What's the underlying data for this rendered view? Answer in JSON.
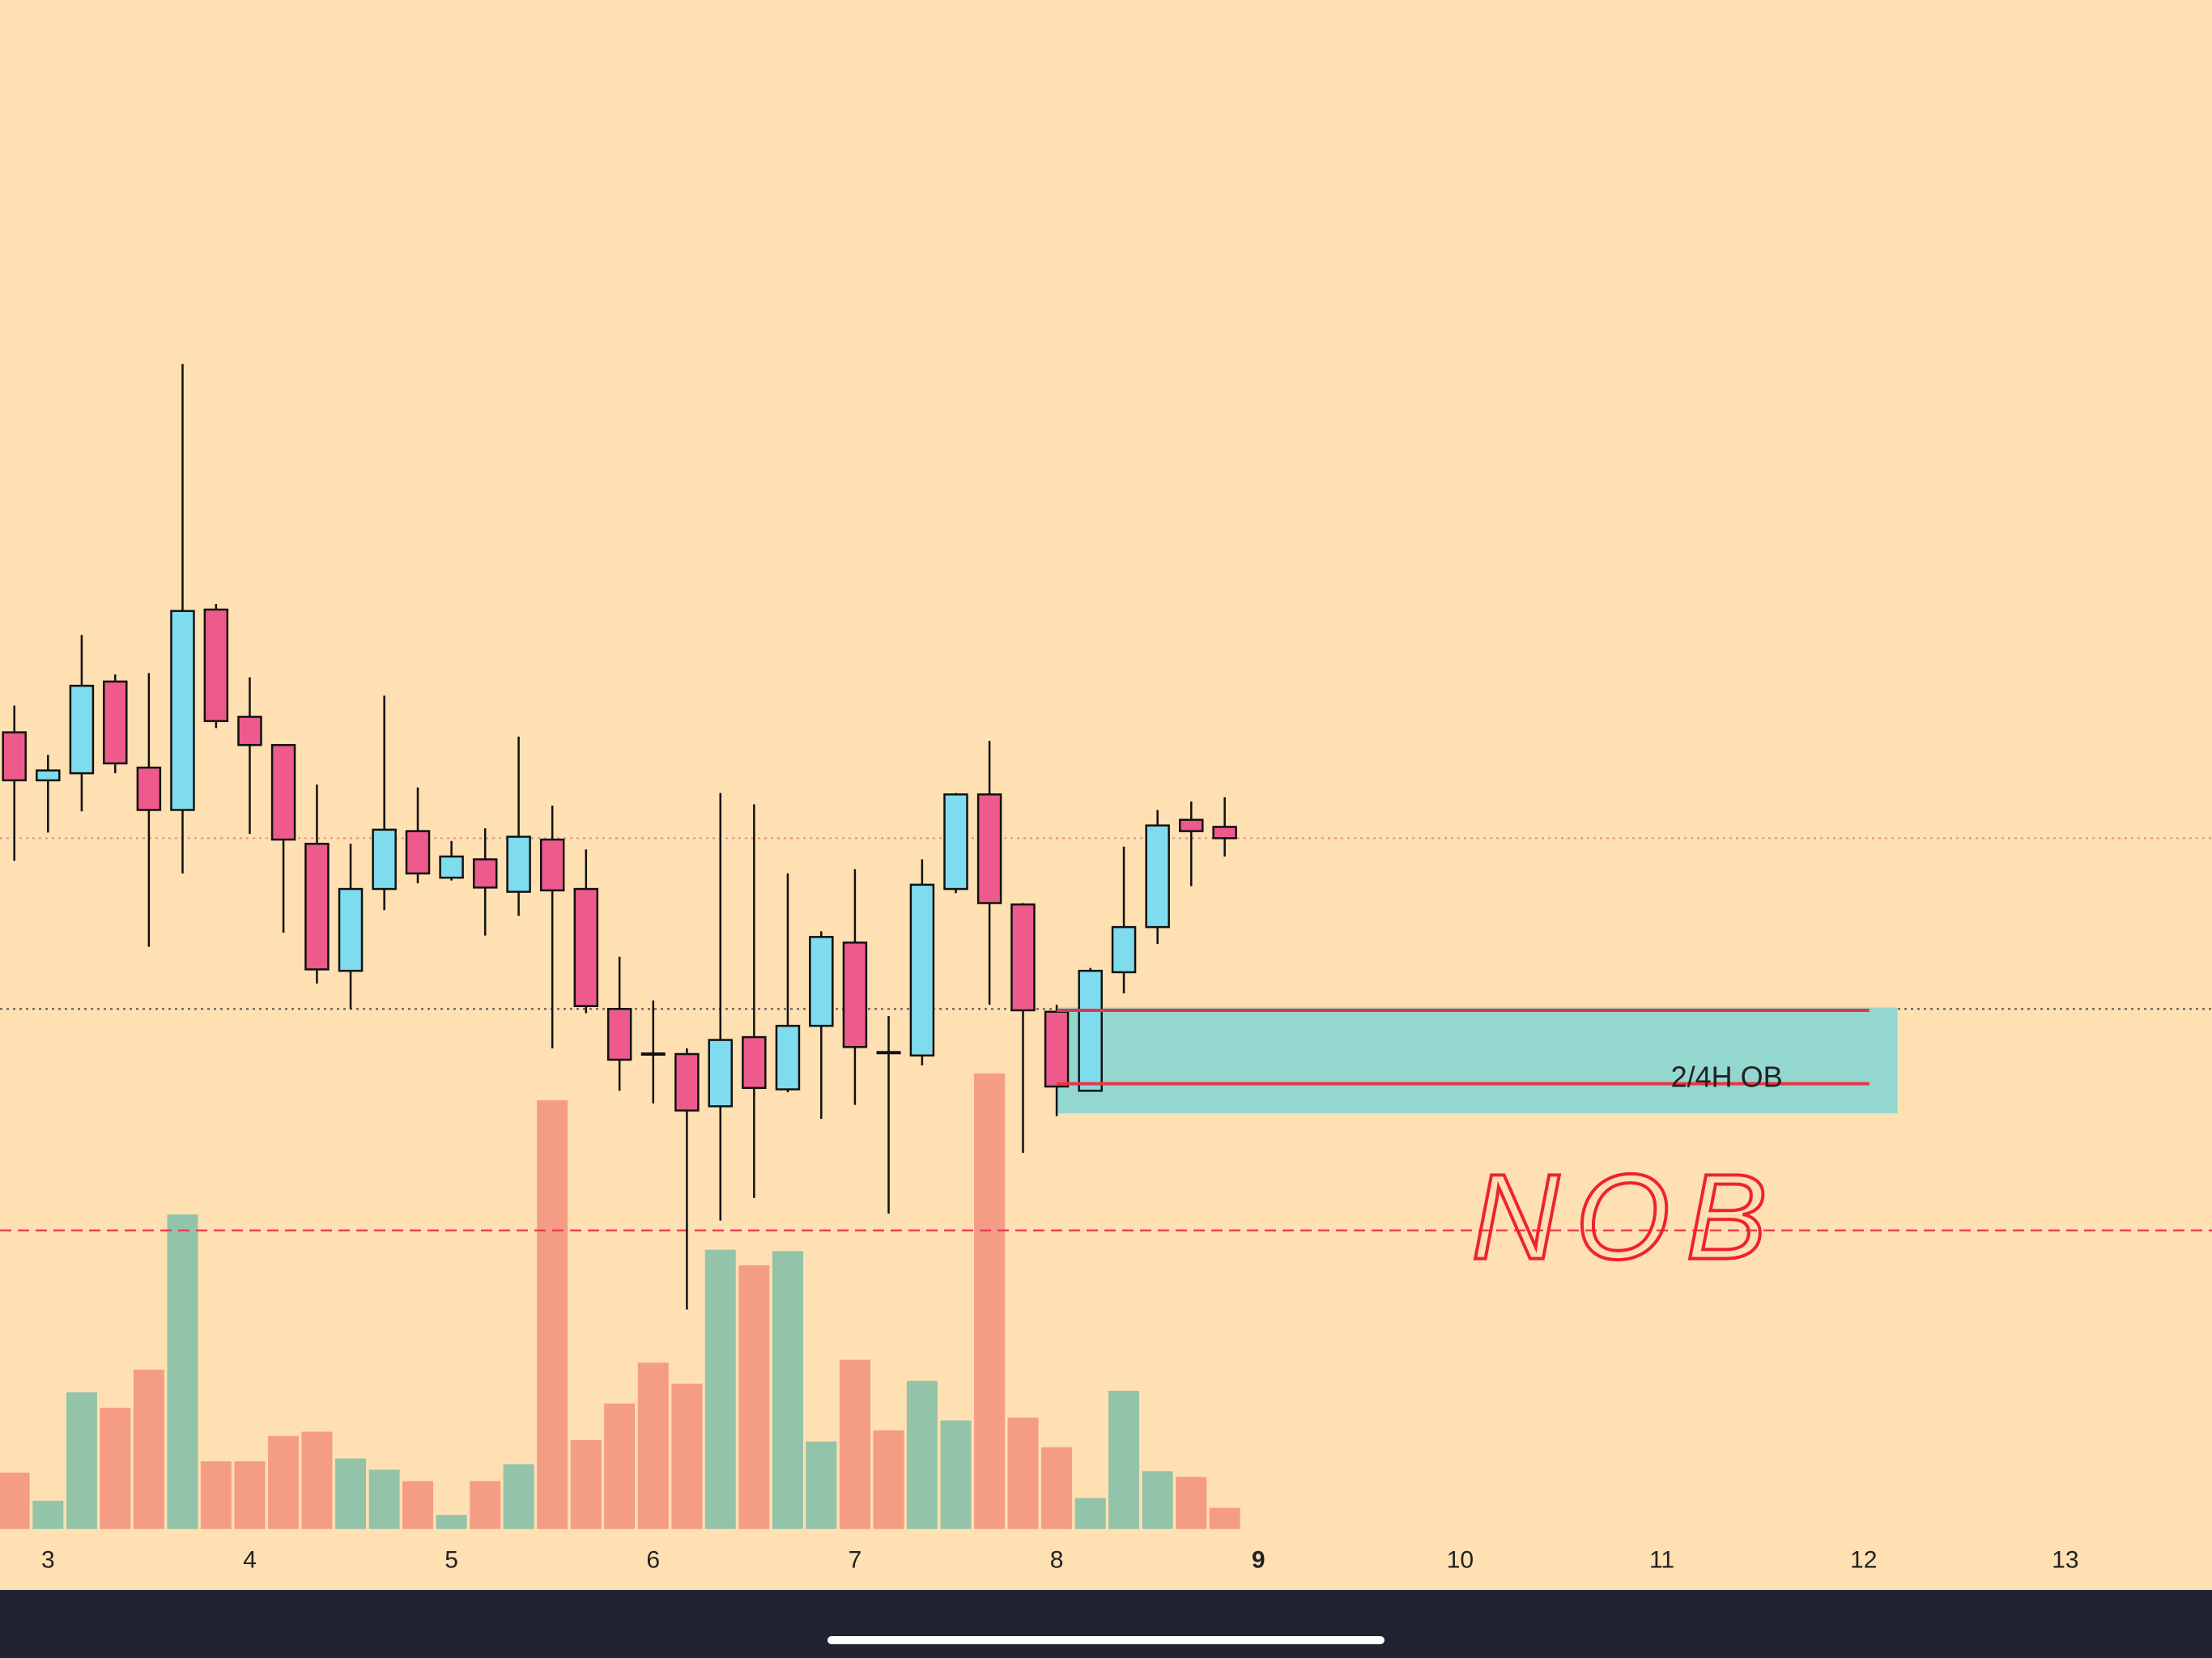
{
  "chart_data": {
    "type": "candlestick",
    "x": [
      2.833,
      3,
      3.167,
      3.333,
      3.5,
      3.667,
      3.833,
      4,
      4.167,
      4.333,
      4.5,
      4.667,
      4.833,
      5,
      5.167,
      5.333,
      5.5,
      5.667,
      5.833,
      6,
      6.167,
      6.333,
      6.5,
      6.667,
      6.833,
      7,
      7.167,
      7.333,
      7.5,
      7.667,
      7.833,
      8,
      8.167,
      8.333,
      8.5,
      8.667,
      8.833
    ],
    "open": [
      656,
      622,
      627,
      692,
      631,
      601,
      743,
      667,
      647,
      577,
      487,
      545,
      586,
      553,
      566,
      543,
      580,
      545,
      460,
      428,
      428,
      391,
      440,
      403,
      448,
      507,
      429,
      427,
      545,
      612,
      534,
      458,
      402,
      486,
      518,
      594,
      589
    ],
    "high": [
      675,
      640,
      725,
      697,
      698,
      917,
      747,
      695,
      647,
      619,
      577,
      682,
      617,
      579,
      588,
      653,
      604,
      573,
      497,
      466,
      432,
      613,
      605,
      556,
      515,
      559,
      455,
      566,
      613,
      650,
      535,
      463,
      489,
      575,
      601,
      607,
      610
    ],
    "low": [
      565,
      585,
      600,
      627,
      504,
      556,
      659,
      584,
      514,
      478,
      460,
      530,
      549,
      551,
      512,
      526,
      432,
      457,
      402,
      393,
      247,
      310,
      326,
      401,
      382,
      392,
      315,
      420,
      542,
      463,
      358,
      384,
      402,
      471,
      506,
      547,
      568
    ],
    "close": [
      622,
      629,
      689,
      634,
      601,
      742,
      664,
      647,
      580,
      488,
      545,
      587,
      556,
      568,
      546,
      582,
      544,
      462,
      424,
      428,
      388,
      438,
      404,
      448,
      511,
      433,
      429,
      548,
      612,
      535,
      459,
      405,
      487,
      518,
      590,
      586,
      581
    ],
    "volume": [
      40,
      20,
      97,
      86,
      113,
      223,
      48,
      48,
      66,
      69,
      50,
      42,
      34,
      10,
      34,
      46,
      304,
      63,
      89,
      118,
      103,
      198,
      187,
      197,
      62,
      120,
      70,
      105,
      77,
      323,
      79,
      58,
      22,
      98,
      41,
      37,
      15
    ],
    "up_color": "#7fdcee",
    "down_color": "#ee5a8c",
    "volume_up_color": "#93c3a8",
    "volume_down_color": "#f59c84",
    "background": "#ffe0b2",
    "xlim": [
      2.762,
      13.727
    ],
    "xticks": [
      3,
      4,
      5,
      6,
      7,
      8,
      9,
      10,
      11,
      12,
      13
    ],
    "highlight_xtick": 9,
    "ylim": [
      0,
      1175
    ],
    "vlim": [
      0,
      1084
    ],
    "levels": [
      {
        "price": 581,
        "color": "#e58a9a",
        "style": "dotted"
      },
      {
        "price": 460,
        "color": "#555555",
        "style": "dotted"
      },
      {
        "price": 303,
        "color": "#e8405a",
        "style": "dashed"
      }
    ],
    "order_block": {
      "label": "2/4H OB",
      "x": [
        8,
        12.168
      ],
      "price": [
        386,
        461
      ],
      "color": "#93d7cf",
      "lines": [
        459,
        407
      ],
      "line_end": 12.028,
      "line_color": "#ee3344"
    },
    "annotation": "NOB"
  }
}
